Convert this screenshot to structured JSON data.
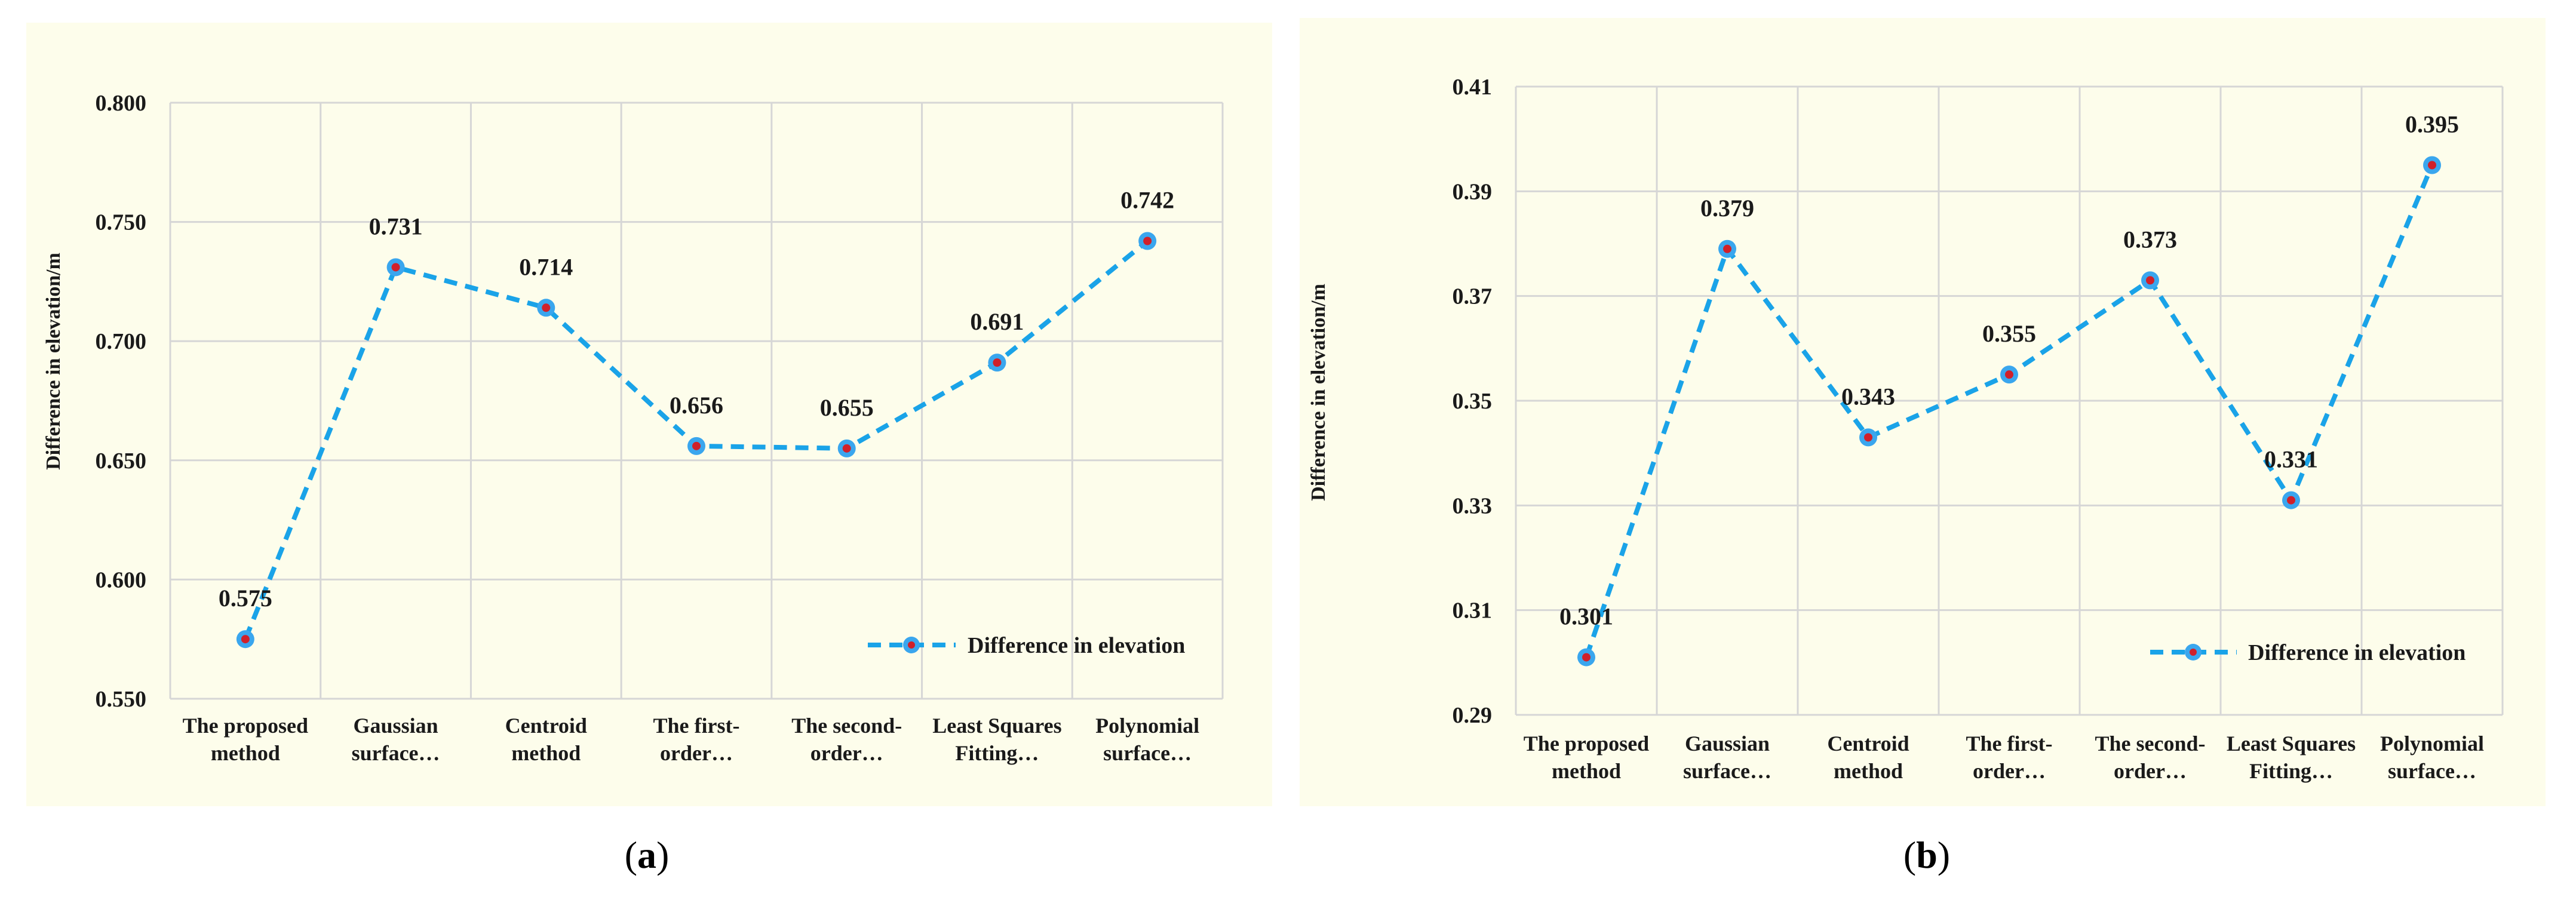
{
  "chart_data": [
    {
      "type": "line",
      "panel_label_open": "(",
      "panel_label": "a",
      "panel_label_close": ")",
      "categories": [
        [
          "The proposed",
          "method"
        ],
        [
          "Gaussian",
          "surface…"
        ],
        [
          "Centroid",
          "method"
        ],
        [
          "The first-",
          "order…"
        ],
        [
          "The second-",
          "order…"
        ],
        [
          "Least Squares",
          "Fitting…"
        ],
        [
          "Polynomial",
          "surface…"
        ]
      ],
      "series": [
        {
          "name": "Difference in elevation",
          "values": [
            0.575,
            0.731,
            0.714,
            0.656,
            0.655,
            0.691,
            0.742
          ]
        }
      ],
      "data_labels": [
        "0.575",
        "0.731",
        "0.714",
        "0.656",
        "0.655",
        "0.691",
        "0.742"
      ],
      "ylabel": "Difference in elevation/m",
      "ylim": [
        0.55,
        0.8
      ],
      "yticks": [
        "0.550",
        "0.600",
        "0.650",
        "0.700",
        "0.750",
        "0.800"
      ],
      "legend_position": "bottom-right",
      "grid": true,
      "colors": {
        "line": "#1aa3e8",
        "marker": "#3aa6ee",
        "marker_center": "#d0202a",
        "background": "#fdfdeb"
      }
    },
    {
      "type": "line",
      "panel_label_open": "(",
      "panel_label": "b",
      "panel_label_close": ")",
      "categories": [
        [
          "The proposed",
          "method"
        ],
        [
          "Gaussian",
          "surface…"
        ],
        [
          "Centroid",
          "method"
        ],
        [
          "The first-",
          "order…"
        ],
        [
          "The second-",
          "order…"
        ],
        [
          "Least Squares",
          "Fitting…"
        ],
        [
          "Polynomial",
          "surface…"
        ]
      ],
      "series": [
        {
          "name": "Difference in elevation",
          "values": [
            0.301,
            0.379,
            0.343,
            0.355,
            0.373,
            0.331,
            0.395
          ]
        }
      ],
      "data_labels": [
        "0.301",
        "0.379",
        "0.343",
        "0.355",
        "0.373",
        "0.331",
        "0.395"
      ],
      "ylabel": "Difference in elevation/m",
      "ylim": [
        0.29,
        0.41
      ],
      "yticks": [
        "0.29",
        "0.31",
        "0.33",
        "0.35",
        "0.37",
        "0.39",
        "0.41"
      ],
      "legend_position": "bottom-right",
      "grid": true,
      "colors": {
        "line": "#1aa3e8",
        "marker": "#3aa6ee",
        "marker_center": "#d0202a",
        "background": "#fdfdeb"
      }
    }
  ]
}
